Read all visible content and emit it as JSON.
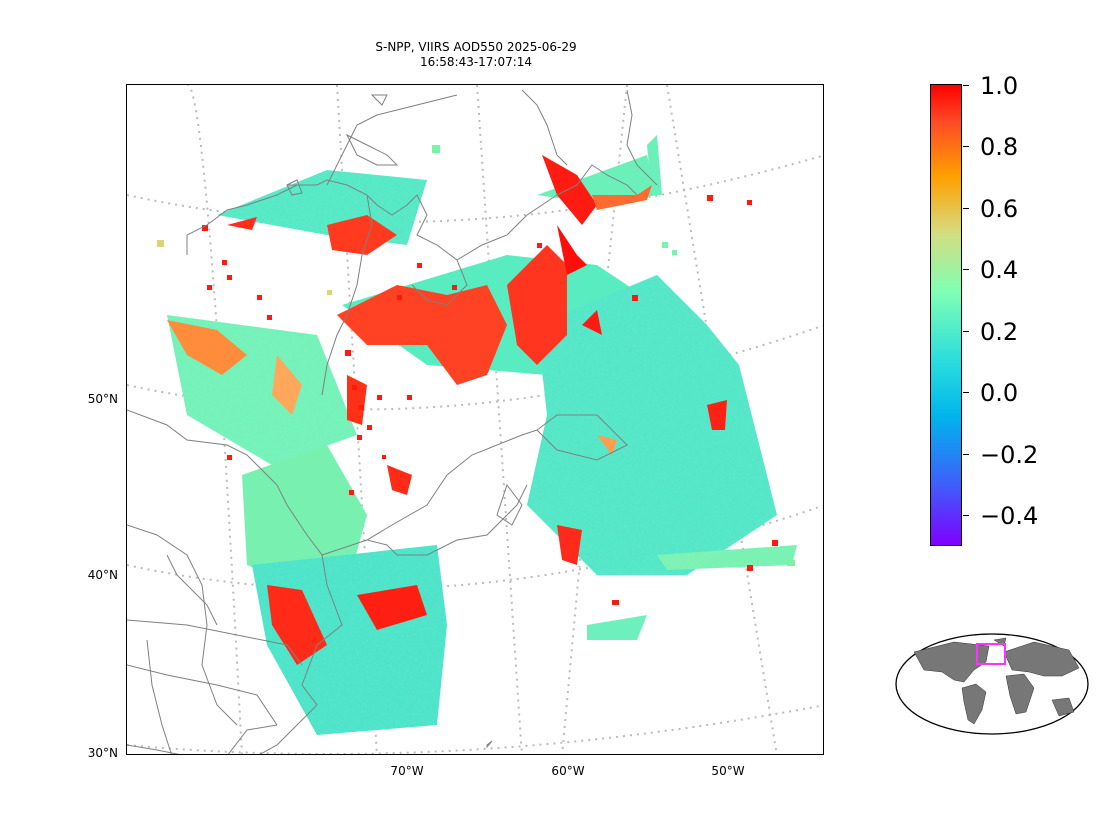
{
  "title": {
    "line1": "S-NPP, VIIRS AOD550 2025-06-29",
    "line2": "16:58:43-17:07:14"
  },
  "map": {
    "lat_labels": [
      "50°N",
      "40°N",
      "30°N"
    ],
    "lon_labels": [
      "70°W",
      "60°W",
      "50°W"
    ],
    "land_line_color": "#808080",
    "graticule_color": "#bbbbbb"
  },
  "colorbar": {
    "colormap": "rainbow",
    "range": [
      -0.5,
      1.0
    ],
    "ticks": [
      "1.0",
      "0.8",
      "0.6",
      "0.4",
      "0.2",
      "0.0",
      "−0.2",
      "−0.4"
    ]
  },
  "inset": {
    "description_icon": "world-locator-map-icon",
    "highlight_color": "#ff33ff",
    "land_color": "#777777"
  }
}
